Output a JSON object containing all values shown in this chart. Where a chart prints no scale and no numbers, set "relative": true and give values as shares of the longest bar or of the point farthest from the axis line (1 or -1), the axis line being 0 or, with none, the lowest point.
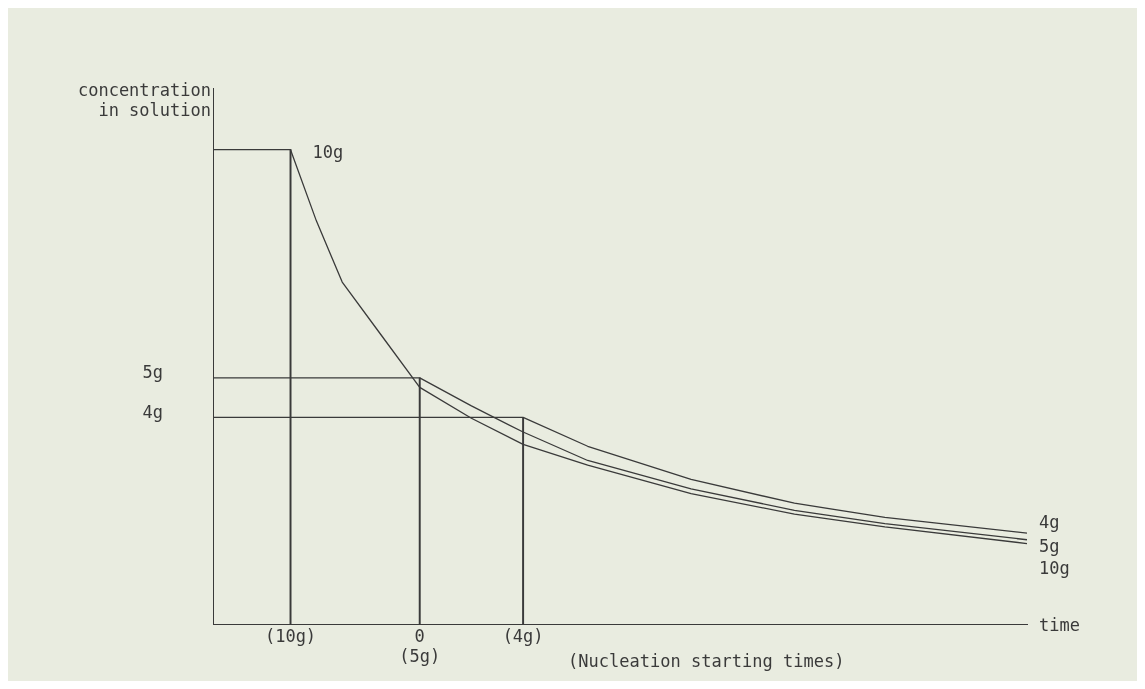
{
  "chart_data": {
    "type": "line",
    "relative": true,
    "xlabel": "time",
    "ylabel": "concentration\nin solution",
    "legend": false,
    "grid": false,
    "marker": "none",
    "line_style": "solid",
    "categories": [
      null,
      null,
      null,
      null,
      null,
      null,
      "(10g)",
      null,
      null,
      null,
      null,
      null,
      null,
      null,
      null,
      null,
      "0\n(5g)",
      null,
      null,
      null,
      null,
      null,
      null,
      null,
      "(4g)",
      null,
      null,
      null,
      null,
      null,
      null,
      null,
      null,
      null,
      null,
      null,
      null,
      null,
      null,
      null,
      null,
      null,
      null,
      null,
      null,
      null,
      null,
      null,
      null,
      null,
      null,
      null,
      null,
      null,
      null,
      null,
      null,
      null,
      null,
      null,
      null,
      null,
      null,
      null
    ],
    "annotations": [
      "(Nucleation starting times)",
      "4g",
      "5g",
      {
        "text": "10g",
        "x": "(10g)",
        "y": 1
      }
    ],
    "series": [
      {
        "name": "4g",
        "color": "#3a3a3a",
        "values": [
          0.436,
          null,
          null,
          null,
          null,
          null,
          null,
          null,
          null,
          null,
          null,
          null,
          null,
          null,
          null,
          null,
          null,
          null,
          null,
          null,
          null,
          null,
          null,
          null,
          0.436,
          null,
          null,
          null,
          null,
          0.375,
          null,
          null,
          null,
          null,
          null,
          null,
          null,
          0.305,
          null,
          null,
          null,
          null,
          null,
          null,
          null,
          0.255,
          null,
          null,
          null,
          null,
          null,
          null,
          0.225,
          null,
          null,
          null,
          null,
          null,
          null,
          null,
          null,
          null,
          null,
          0.192
        ]
      },
      {
        "name": "5g",
        "color": "#3a3a3a",
        "values": [
          0.519,
          null,
          null,
          null,
          null,
          null,
          null,
          null,
          null,
          null,
          null,
          null,
          null,
          null,
          null,
          null,
          0.519,
          null,
          null,
          null,
          0.46,
          null,
          null,
          null,
          0.405,
          null,
          null,
          null,
          null,
          0.345,
          null,
          null,
          null,
          null,
          null,
          null,
          null,
          0.285,
          null,
          null,
          null,
          null,
          null,
          null,
          null,
          0.24,
          null,
          null,
          null,
          null,
          null,
          null,
          0.212,
          null,
          null,
          null,
          null,
          null,
          null,
          null,
          null,
          null,
          null,
          0.178
        ]
      },
      {
        "name": "10g",
        "color": "#3a3a3a",
        "values": [
          1,
          null,
          null,
          null,
          null,
          null,
          1,
          null,
          0.85,
          null,
          0.721,
          null,
          null,
          0.61,
          null,
          null,
          0.499,
          null,
          null,
          null,
          0.434,
          null,
          null,
          null,
          0.379,
          null,
          null,
          null,
          null,
          0.335,
          null,
          null,
          null,
          null,
          null,
          null,
          null,
          0.275,
          null,
          null,
          null,
          null,
          null,
          null,
          null,
          0.232,
          null,
          null,
          null,
          null,
          null,
          null,
          0.205,
          null,
          null,
          null,
          null,
          null,
          null,
          null,
          null,
          null,
          null,
          0.17
        ]
      },
      {
        "type": "bar",
        "color": "#3a3a3a",
        "values": [
          null,
          null,
          null,
          null,
          null,
          null,
          1,
          null,
          null,
          null,
          null,
          null,
          null,
          null,
          null,
          null,
          0.519,
          null,
          null,
          null,
          null,
          null,
          null,
          null,
          0.436,
          null,
          null,
          null,
          null,
          null,
          null,
          null,
          null,
          null,
          null,
          null,
          null,
          null,
          null,
          null,
          null,
          null,
          null,
          null,
          null,
          null,
          null,
          null,
          null,
          null,
          null,
          null,
          null,
          null,
          null,
          null,
          null,
          null,
          null,
          null,
          null,
          null,
          null,
          null
        ]
      }
    ]
  }
}
